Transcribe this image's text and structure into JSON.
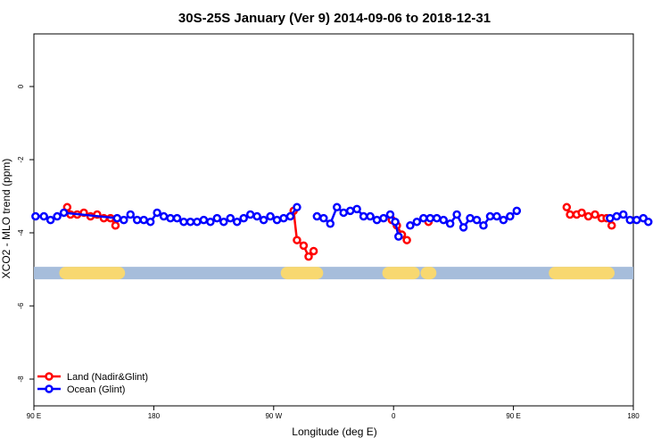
{
  "chart_data": {
    "type": "line",
    "title": "30S-25S January (Ver 9)   2014-09-06 to 2018-12-31",
    "xlabel": "Longitude (deg E)",
    "ylabel": "XCO2 - MLO trend (ppm)",
    "xlim": [
      90,
      450
    ],
    "ylim": [
      -9,
      1.4
    ],
    "x_ticks": [
      {
        "value": 90,
        "label": "90 E"
      },
      {
        "value": 162,
        "label": "180"
      },
      {
        "value": 234,
        "label": "90 W"
      },
      {
        "value": 306,
        "label": "0"
      },
      {
        "value": 378,
        "label": "90 E"
      },
      {
        "value": 450,
        "label": "180"
      }
    ],
    "y_ticks": [
      {
        "value": 0,
        "label": "0"
      },
      {
        "value": -2,
        "label": "-2"
      },
      {
        "value": -4,
        "label": "-4"
      },
      {
        "value": -6,
        "label": "-6"
      },
      {
        "value": -8,
        "label": "-8"
      }
    ],
    "land_mask": {
      "y": -5.1,
      "ocean_color": "#a6bddb",
      "land_color": "#f8d870",
      "land_segments": [
        [
          109,
          141
        ],
        [
          242,
          260
        ],
        [
          303,
          318
        ],
        [
          326,
          328
        ],
        [
          403,
          435
        ]
      ]
    },
    "legend_position": "bottom-left",
    "series": [
      {
        "name": "Land (Nadir&Glint)",
        "color": "#ff0000",
        "segments": [
          [
            [
              110,
              -3.3
            ],
            [
              112,
              -3.5
            ],
            [
              116,
              -3.5
            ],
            [
              120,
              -3.45
            ],
            [
              124,
              -3.55
            ],
            [
              128,
              -3.5
            ],
            [
              132,
              -3.6
            ],
            [
              136,
              -3.6
            ],
            [
              139,
              -3.8
            ]
          ],
          [
            [
              246,
              -3.4
            ],
            [
              248,
              -4.2
            ],
            [
              252,
              -4.35
            ],
            [
              255,
              -4.65
            ],
            [
              258,
              -4.5
            ]
          ],
          [
            [
              305,
              -3.65
            ],
            [
              308,
              -3.8
            ],
            [
              311,
              -4.05
            ],
            [
              314,
              -4.2
            ]
          ],
          [
            [
              327,
              -3.7
            ]
          ],
          [
            [
              410,
              -3.3
            ],
            [
              412,
              -3.5
            ],
            [
              416,
              -3.5
            ],
            [
              419,
              -3.45
            ],
            [
              423,
              -3.55
            ],
            [
              427,
              -3.5
            ],
            [
              431,
              -3.6
            ],
            [
              434,
              -3.6
            ],
            [
              437,
              -3.8
            ]
          ]
        ]
      },
      {
        "name": "Ocean (Glint)",
        "color": "#0000ff",
        "segments": [
          [
            [
              91,
              -3.55
            ],
            [
              96,
              -3.55
            ],
            [
              100,
              -3.65
            ],
            [
              104,
              -3.55
            ],
            [
              108,
              -3.45
            ],
            [
              140,
              -3.6
            ],
            [
              144,
              -3.65
            ],
            [
              148,
              -3.5
            ],
            [
              152,
              -3.65
            ],
            [
              156,
              -3.65
            ],
            [
              160,
              -3.7
            ],
            [
              164,
              -3.45
            ],
            [
              168,
              -3.55
            ],
            [
              172,
              -3.6
            ],
            [
              176,
              -3.6
            ],
            [
              180,
              -3.7
            ],
            [
              184,
              -3.7
            ],
            [
              188,
              -3.7
            ],
            [
              192,
              -3.65
            ],
            [
              196,
              -3.7
            ],
            [
              200,
              -3.6
            ],
            [
              204,
              -3.7
            ],
            [
              208,
              -3.6
            ],
            [
              212,
              -3.7
            ],
            [
              216,
              -3.6
            ],
            [
              220,
              -3.5
            ],
            [
              224,
              -3.55
            ],
            [
              228,
              -3.65
            ],
            [
              232,
              -3.55
            ],
            [
              236,
              -3.65
            ],
            [
              240,
              -3.6
            ],
            [
              244,
              -3.55
            ],
            [
              248,
              -3.3
            ]
          ],
          [
            [
              260,
              -3.55
            ],
            [
              264,
              -3.6
            ],
            [
              268,
              -3.75
            ],
            [
              272,
              -3.3
            ],
            [
              276,
              -3.45
            ],
            [
              280,
              -3.4
            ],
            [
              284,
              -3.35
            ],
            [
              288,
              -3.55
            ],
            [
              292,
              -3.55
            ],
            [
              296,
              -3.65
            ],
            [
              300,
              -3.6
            ],
            [
              304,
              -3.5
            ],
            [
              307,
              -3.7
            ],
            [
              309,
              -4.1
            ]
          ],
          [
            [
              316,
              -3.8
            ],
            [
              320,
              -3.7
            ],
            [
              324,
              -3.6
            ],
            [
              328,
              -3.6
            ],
            [
              332,
              -3.6
            ],
            [
              336,
              -3.65
            ],
            [
              340,
              -3.75
            ],
            [
              344,
              -3.5
            ],
            [
              348,
              -3.85
            ],
            [
              352,
              -3.6
            ],
            [
              356,
              -3.65
            ],
            [
              360,
              -3.8
            ],
            [
              364,
              -3.55
            ],
            [
              368,
              -3.55
            ],
            [
              372,
              -3.65
            ],
            [
              376,
              -3.55
            ],
            [
              380,
              -3.4
            ]
          ],
          [
            [
              436,
              -3.6
            ],
            [
              440,
              -3.55
            ],
            [
              444,
              -3.5
            ],
            [
              448,
              -3.65
            ],
            [
              452,
              -3.65
            ],
            [
              456,
              -3.6
            ],
            [
              459,
              -3.7
            ]
          ]
        ]
      }
    ]
  }
}
